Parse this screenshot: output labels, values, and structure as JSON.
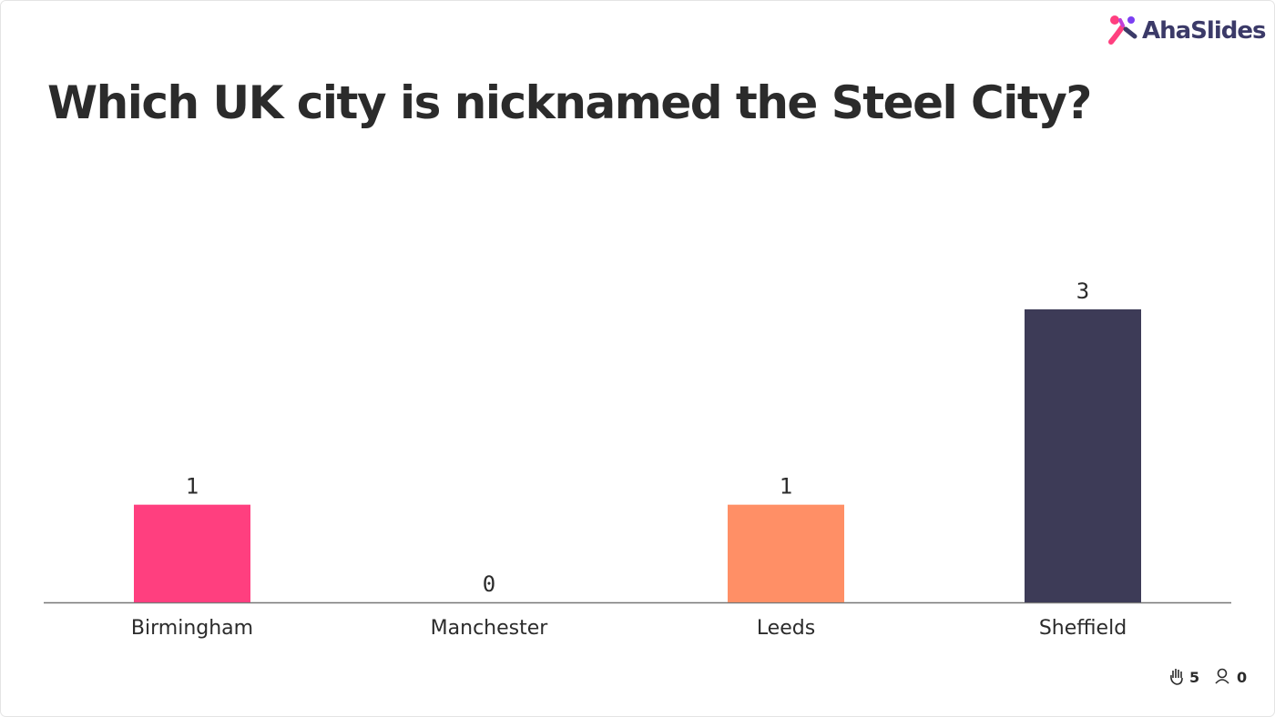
{
  "brand": "AhaSlides",
  "chart_data": {
    "type": "bar",
    "title": "Which UK city is nicknamed the Steel City?",
    "categories": [
      "Birmingham",
      "Manchester",
      "Leeds",
      "Sheffield"
    ],
    "values": [
      1,
      0,
      1,
      3
    ],
    "colors": [
      "#ff3f7f",
      "#4a7cf7",
      "#ff8f66",
      "#3d3b57"
    ],
    "ylim": [
      0,
      3
    ]
  },
  "footer": {
    "reactions": 5,
    "participants": 0
  }
}
